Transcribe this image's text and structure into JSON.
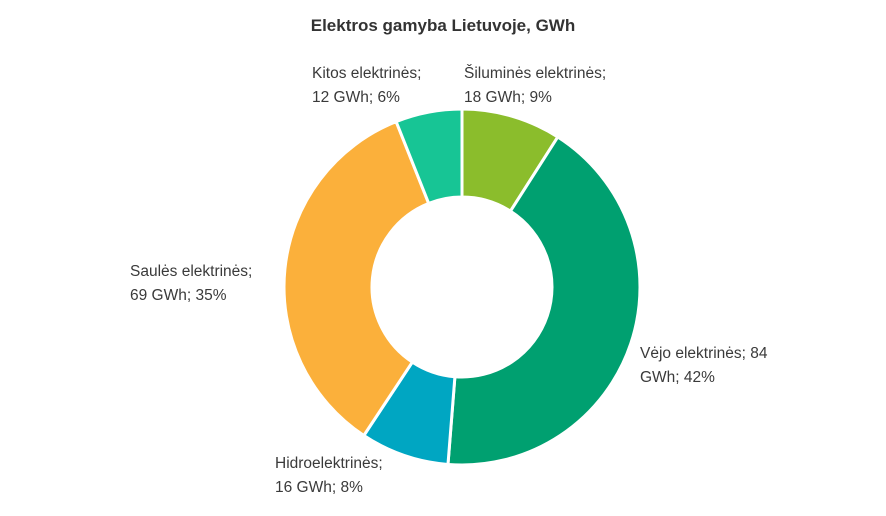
{
  "chart_data": {
    "type": "pie",
    "donut": true,
    "title": "Elektros gamyba Lietuvoje, GWh",
    "unit": "GWh",
    "slices": [
      {
        "name": "Šiluminės elektrinės",
        "value": 18,
        "percent": 9,
        "color": "#8bbd2c",
        "label_line1": "Šiluminės elektrinės;",
        "label_line2": "18 GWh; 9%"
      },
      {
        "name": "Vėjo elektrinės",
        "value": 84,
        "percent": 42,
        "color": "#00a070",
        "label_line1": "Vėjo elektrinės; 84",
        "label_line2": "GWh; 42%"
      },
      {
        "name": "Hidroelektrinės",
        "value": 16,
        "percent": 8,
        "color": "#00a6c2",
        "label_line1": "Hidroelektrinės;",
        "label_line2": "16 GWh; 8%"
      },
      {
        "name": "Saulės elektrinės",
        "value": 69,
        "percent": 35,
        "color": "#fbb03b",
        "label_line1": "Saulės elektrinės;",
        "label_line2": "69 GWh; 35%"
      },
      {
        "name": "Kitos elektrinės",
        "value": 12,
        "percent": 6,
        "color": "#17c595",
        "label_line1": "Kitos elektrinės;",
        "label_line2": "12 GWh; 6%"
      }
    ]
  }
}
